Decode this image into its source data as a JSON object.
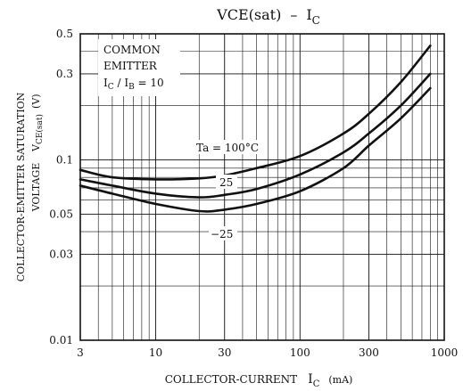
{
  "chart_data": {
    "type": "line",
    "title": "VCE(sat)",
    "title_sep": "–",
    "title_var_main": "I",
    "title_var_sub": "C",
    "xlabel": "COLLECTOR-CURRENT",
    "xlabel_var_main": "I",
    "xlabel_var_sub": "C",
    "xlabel_unit": "(mA)",
    "ylabel_line1": "COLLECTOR-EMITTER SATURATION",
    "ylabel_line2": "VOLTAGE",
    "ylabel_var_main": "V",
    "ylabel_var_sub": "CE(sat)",
    "ylabel_unit": "(V)",
    "x_scale": "log",
    "y_scale": "log",
    "xlim": [
      3,
      1000
    ],
    "ylim": [
      0.01,
      0.5
    ],
    "x_ticks": [
      3,
      10,
      30,
      100,
      300,
      1000
    ],
    "x_tick_labels": [
      "3",
      "10",
      "30",
      "100",
      "300",
      "1000"
    ],
    "y_ticks": [
      0.01,
      0.03,
      0.05,
      0.1,
      0.3,
      0.5
    ],
    "y_tick_labels": [
      "0.01",
      "0.03",
      "0.05",
      "0.1",
      "0.3",
      "0.5"
    ],
    "grid": true,
    "annotation": {
      "line1": "COMMON",
      "line2": "EMITTER",
      "line3_a_main": "I",
      "line3_a_sub": "C",
      "line3_sep": " / ",
      "line3_b_main": "I",
      "line3_b_sub": "B",
      "line3_value": " = 10"
    },
    "series": [
      {
        "name": "Ta = 100°C",
        "x": [
          3,
          5,
          10,
          20,
          30,
          50,
          100,
          200,
          300,
          500,
          800
        ],
        "y": [
          0.088,
          0.08,
          0.078,
          0.079,
          0.082,
          0.09,
          0.105,
          0.14,
          0.18,
          0.27,
          0.43
        ]
      },
      {
        "name": "25",
        "x": [
          3,
          5,
          10,
          20,
          30,
          50,
          100,
          200,
          300,
          500,
          800
        ],
        "y": [
          0.078,
          0.072,
          0.065,
          0.062,
          0.064,
          0.069,
          0.083,
          0.11,
          0.14,
          0.2,
          0.3
        ]
      },
      {
        "name": "−25",
        "x": [
          3,
          5,
          10,
          20,
          30,
          50,
          100,
          200,
          300,
          500,
          800
        ],
        "y": [
          0.072,
          0.065,
          0.057,
          0.052,
          0.053,
          0.057,
          0.067,
          0.09,
          0.12,
          0.17,
          0.25
        ]
      }
    ]
  }
}
